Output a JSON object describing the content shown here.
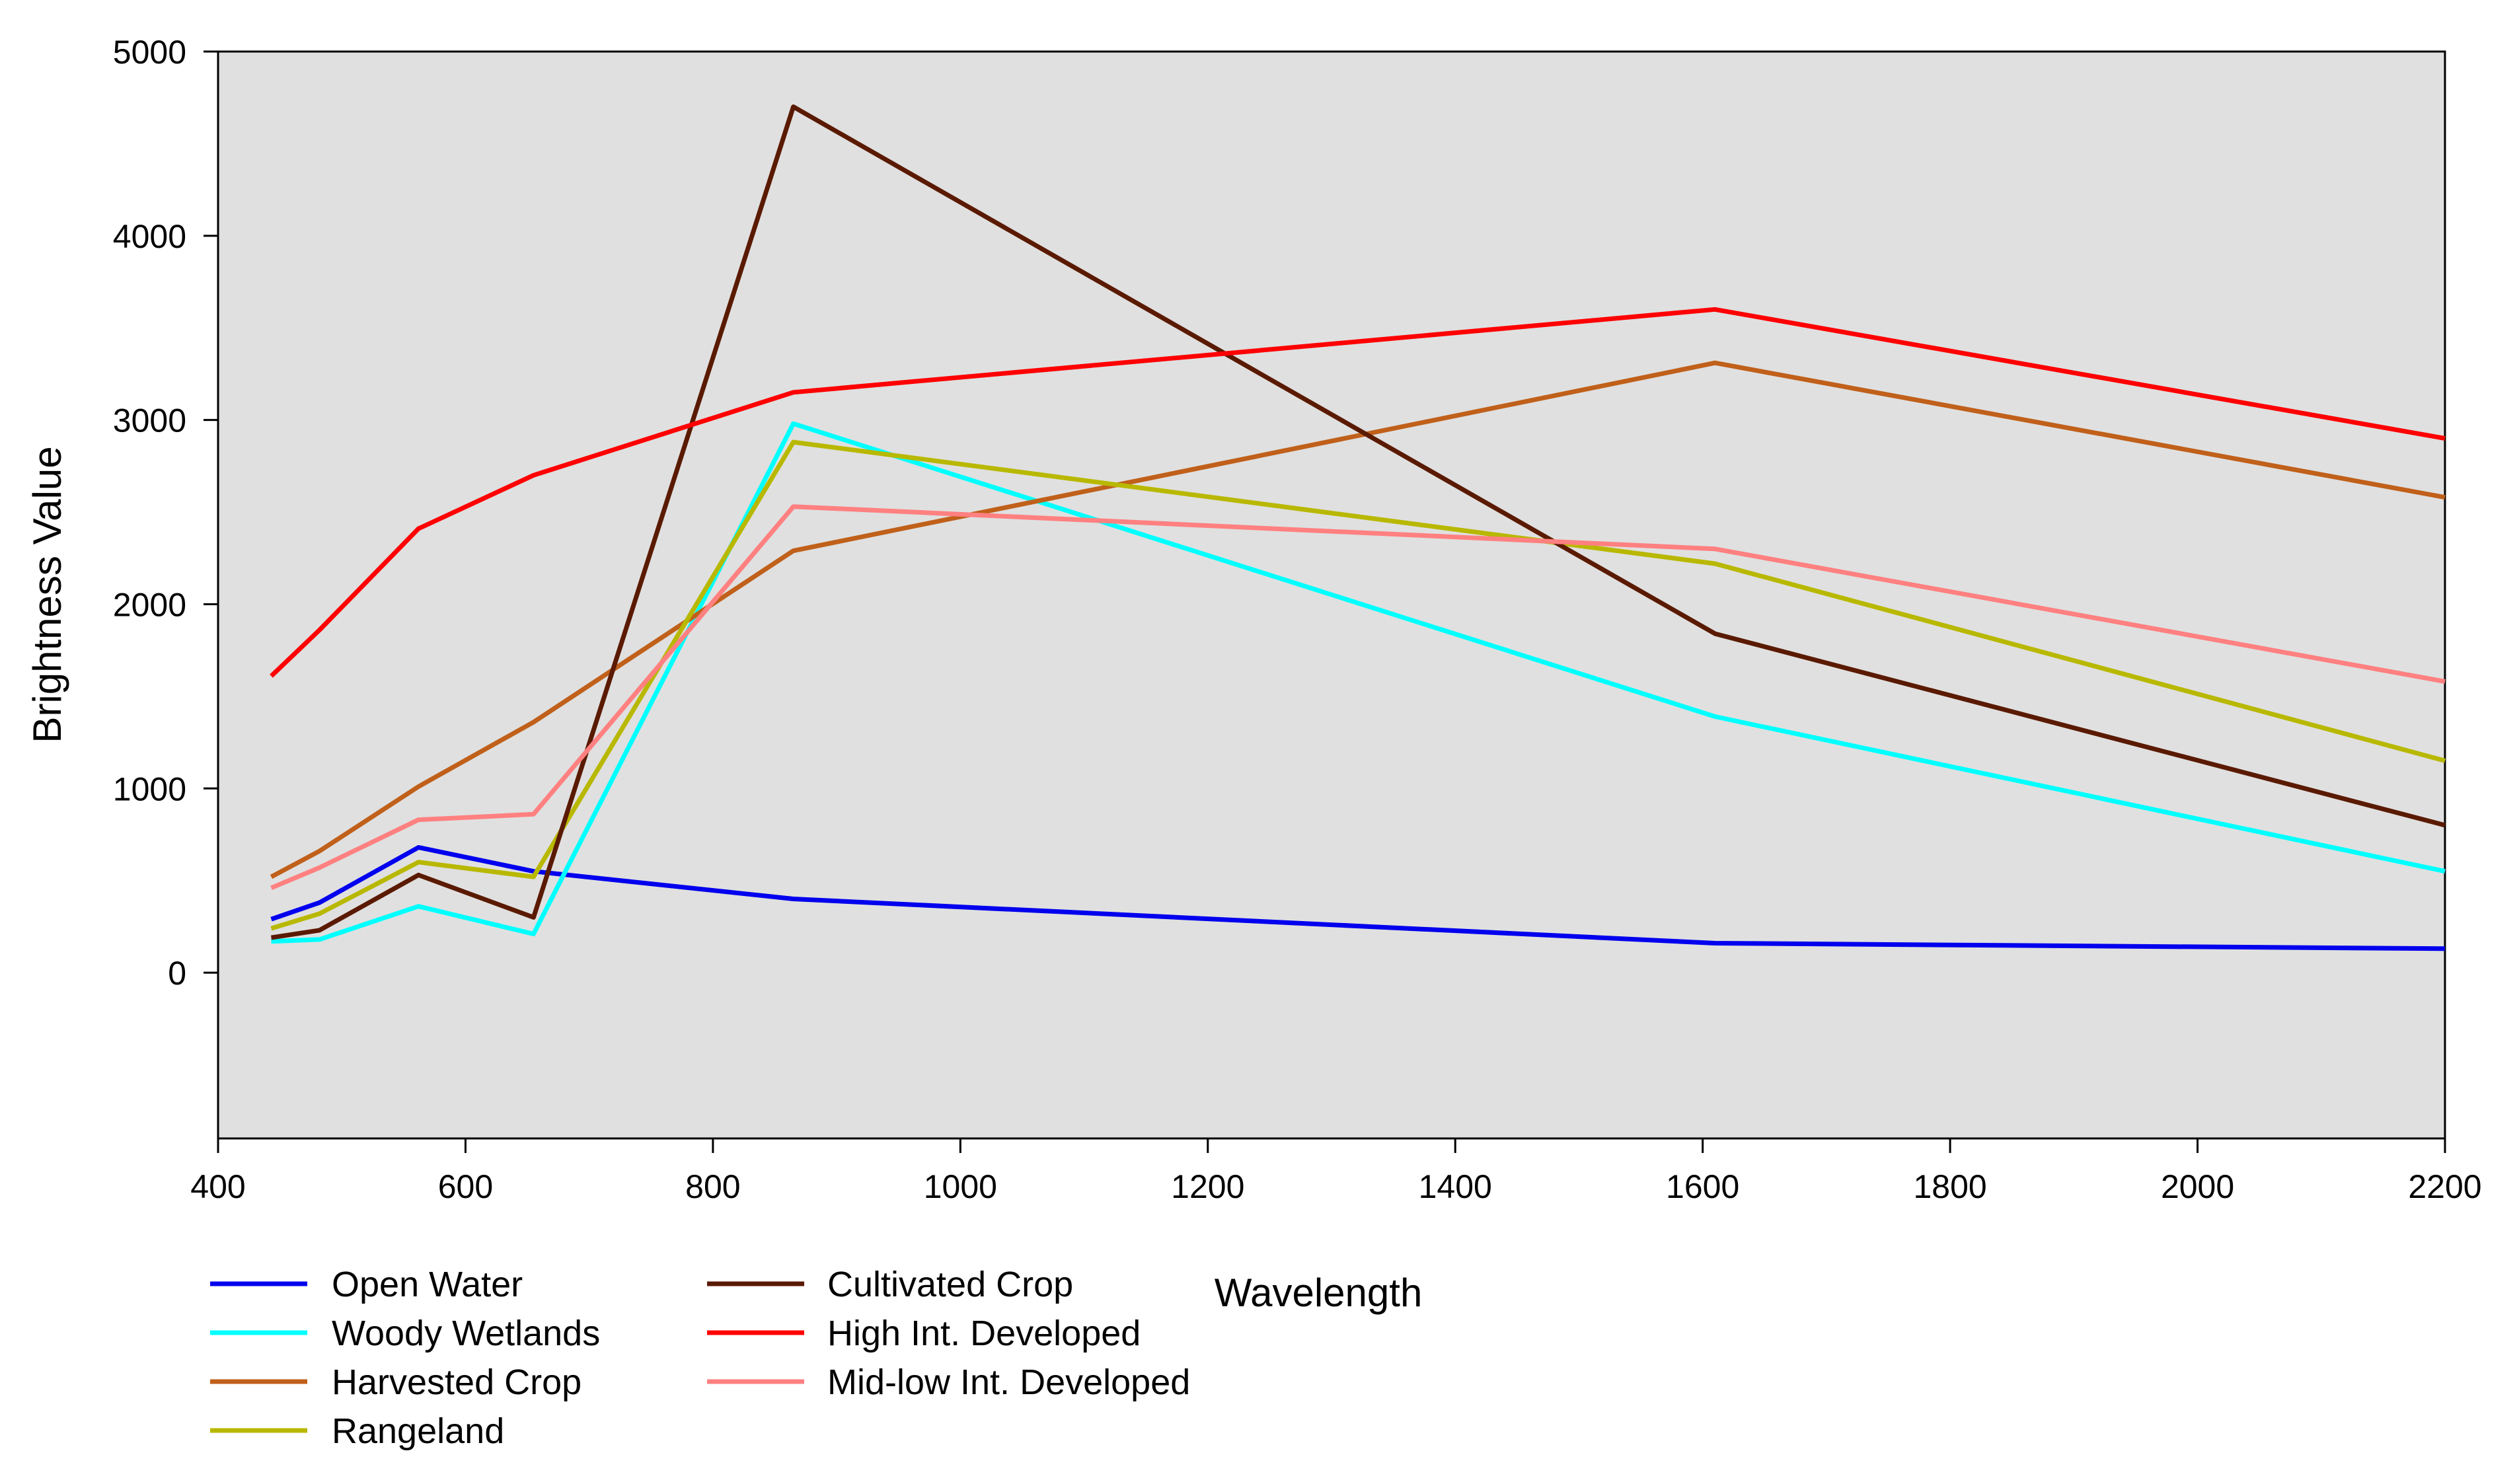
{
  "chart_data": {
    "type": "line",
    "title": "",
    "xlabel": "Wavelength",
    "ylabel": "Brightness Value",
    "xlim": [
      400,
      2200
    ],
    "ylim": [
      -900,
      5000
    ],
    "xticks": [
      400,
      600,
      800,
      1000,
      1200,
      1400,
      1600,
      1800,
      2000,
      2200
    ],
    "yticks": [
      0,
      1000,
      2000,
      3000,
      4000,
      5000
    ],
    "xtick_labels": [
      "400",
      "600",
      "800",
      "1000",
      "1200",
      "1400",
      "1600",
      "1800",
      "2000",
      "2200"
    ],
    "ytick_labels": [
      "0",
      "1000",
      "2000",
      "3000",
      "4000",
      "5000"
    ],
    "x": [
      443,
      482,
      562,
      655,
      865,
      1610,
      2200
    ],
    "grid": false,
    "legend_position": "bottom-left",
    "plot_background": "#e0e0e0",
    "series": [
      {
        "name": "Open Water",
        "color": "#0000ee",
        "values": [
          290,
          380,
          680,
          550,
          400,
          160,
          130
        ]
      },
      {
        "name": "Woody Wetlands",
        "color": "#00ffff",
        "values": [
          170,
          180,
          360,
          210,
          2980,
          1390,
          550
        ]
      },
      {
        "name": "Harvested Crop",
        "color": "#c0601a",
        "values": [
          520,
          660,
          1010,
          1360,
          2290,
          3310,
          2580
        ]
      },
      {
        "name": "Rangeland",
        "color": "#b8b800",
        "values": [
          240,
          320,
          600,
          520,
          2880,
          2220,
          1150
        ]
      },
      {
        "name": "Cultivated Crop",
        "color": "#5a1a00",
        "values": [
          190,
          230,
          530,
          300,
          4700,
          1840,
          800
        ]
      },
      {
        "name": "High Int. Developed",
        "color": "#ff0000",
        "values": [
          1610,
          1860,
          2410,
          2700,
          3150,
          3600,
          2900
        ]
      },
      {
        "name": "Mid-low Int. Developed",
        "color": "#ff8080",
        "values": [
          460,
          570,
          830,
          860,
          2530,
          2300,
          1580
        ]
      }
    ]
  }
}
